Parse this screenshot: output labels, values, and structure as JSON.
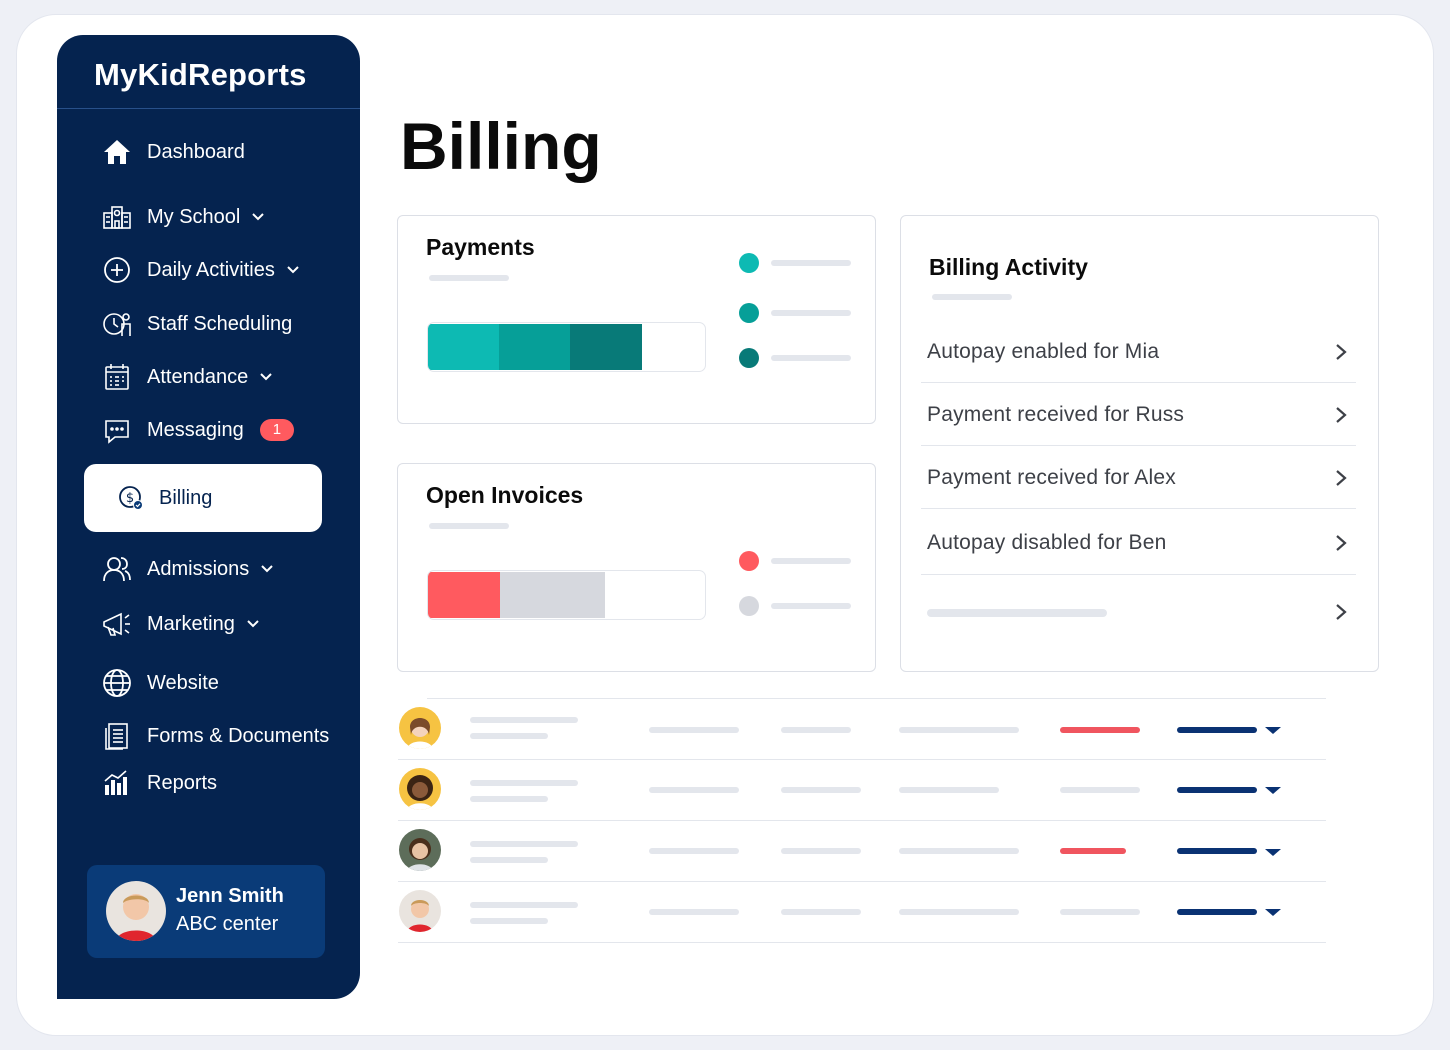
{
  "app": {
    "brand": "MyKidReports"
  },
  "sidebar": {
    "items": [
      {
        "label": "Dashboard"
      },
      {
        "label": "My School"
      },
      {
        "label": "Daily Activities"
      },
      {
        "label": "Staff Scheduling"
      },
      {
        "label": "Attendance"
      },
      {
        "label": "Messaging",
        "badge": "1"
      },
      {
        "label": "Billing"
      },
      {
        "label": "Admissions"
      },
      {
        "label": "Marketing"
      },
      {
        "label": "Website"
      },
      {
        "label": "Forms & Documents"
      },
      {
        "label": "Reports"
      }
    ],
    "active": "Billing"
  },
  "user": {
    "name": "Jenn Smith",
    "org": "ABC center"
  },
  "page": {
    "title": "Billing"
  },
  "payments": {
    "title": "Payments",
    "segments": [
      {
        "fraction": 0.257,
        "color": "#0dbab3"
      },
      {
        "fraction": 0.257,
        "color": "#069f98"
      },
      {
        "fraction": 0.26,
        "color": "#087a78"
      }
    ],
    "legend_colors": [
      "#0dbab3",
      "#069f98",
      "#087a78"
    ]
  },
  "open_invoices": {
    "title": "Open Invoices",
    "segments": [
      {
        "fraction": 0.26,
        "color": "#ff5a5f"
      },
      {
        "fraction": 0.38,
        "color": "#d6d8de"
      }
    ],
    "legend_colors": [
      "#ff5a5f",
      "#d6d8de"
    ]
  },
  "billing_activity": {
    "title": "Billing Activity",
    "items": [
      {
        "label": "Autopay enabled for Mia"
      },
      {
        "label": "Payment received for Russ"
      },
      {
        "label": "Payment received for Alex"
      },
      {
        "label": "Autopay disabled for Ben"
      }
    ]
  },
  "colors": {
    "navy": "#05234f",
    "accent_red": "#ff5a5f",
    "teal": "#0dbab3"
  }
}
